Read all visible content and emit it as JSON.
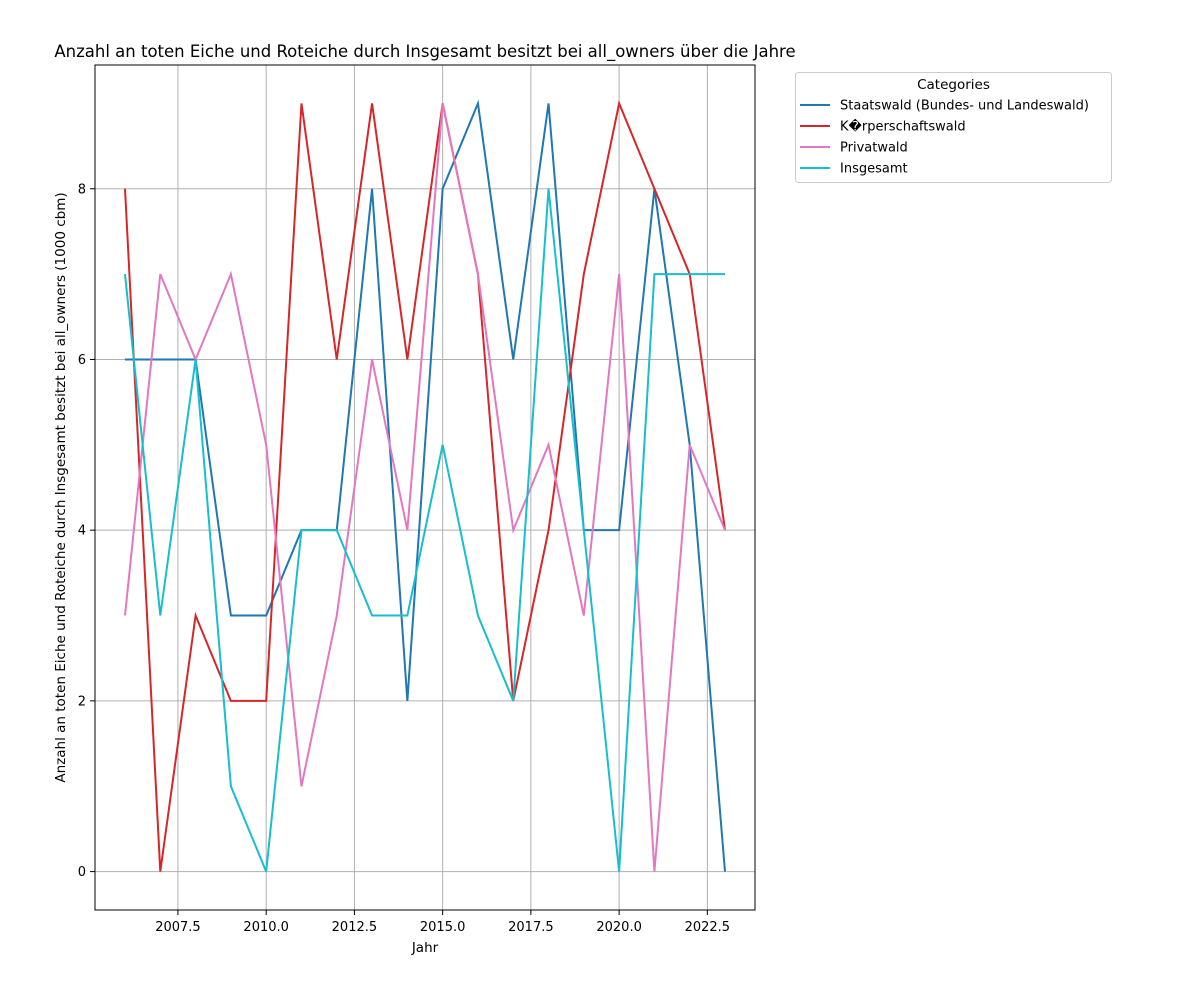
{
  "chart_data": {
    "type": "line",
    "title": "Anzahl an toten Eiche und Roteiche durch Insgesamt besitzt bei all_owners über die Jahre",
    "xlabel": "Jahr",
    "ylabel": "Anzahl an toten Eiche und Roteiche durch Insgesamt besitzt bei all_owners (1000 cbm)",
    "x": [
      2006,
      2007,
      2008,
      2009,
      2010,
      2011,
      2012,
      2013,
      2014,
      2015,
      2016,
      2017,
      2018,
      2019,
      2020,
      2021,
      2022,
      2023
    ],
    "xlim": [
      2005.15,
      2023.85
    ],
    "ylim": [
      -0.45,
      9.45
    ],
    "xticks": [
      2007.5,
      2010.0,
      2012.5,
      2015.0,
      2017.5,
      2020.0,
      2022.5
    ],
    "xtick_labels": [
      "2007.5",
      "2010.0",
      "2012.5",
      "2015.0",
      "2017.5",
      "2020.0",
      "2022.5"
    ],
    "yticks": [
      0,
      2,
      4,
      6,
      8
    ],
    "ytick_labels": [
      "0",
      "2",
      "4",
      "6",
      "8"
    ],
    "grid": true,
    "legend_title": "Categories",
    "legend_position": "outside-top-right",
    "series": [
      {
        "name": "Staatswald (Bundes- und Landeswald)",
        "color": "#1f77b4",
        "values": [
          6,
          6,
          6,
          3,
          3,
          4,
          4,
          8,
          2,
          8,
          9,
          6,
          9,
          4,
          4,
          8,
          5,
          0
        ]
      },
      {
        "name": "K�rperschaftswald",
        "color": "#d62728",
        "values": [
          8,
          0,
          3,
          2,
          2,
          9,
          6,
          9,
          6,
          9,
          7,
          2,
          4,
          7,
          9,
          8,
          7,
          4
        ]
      },
      {
        "name": "Privatwald",
        "color": "#e377c2",
        "values": [
          3,
          7,
          6,
          7,
          5,
          1,
          3,
          6,
          4,
          9,
          7,
          4,
          5,
          3,
          7,
          0,
          5,
          4
        ]
      },
      {
        "name": "Insgesamt",
        "color": "#17becf",
        "values": [
          7,
          3,
          6,
          1,
          0,
          4,
          4,
          3,
          3,
          5,
          3,
          2,
          8,
          4,
          0,
          7,
          7,
          7
        ]
      }
    ]
  }
}
